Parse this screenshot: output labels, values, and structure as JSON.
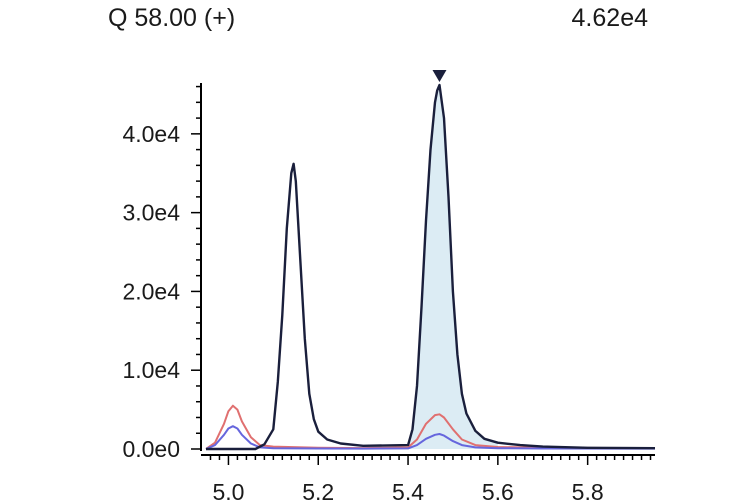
{
  "header": {
    "channel": "Q 58.00 (+)",
    "max_intensity": "4.62e4"
  },
  "chart_data": {
    "type": "line",
    "title": "Q 58.00 (+)",
    "xlabel": "",
    "ylabel": "",
    "xlim": [
      4.95,
      5.95
    ],
    "ylim": [
      0,
      46200
    ],
    "x_ticks": [
      5.0,
      5.2,
      5.4,
      5.6,
      5.8
    ],
    "x_tick_labels": [
      "5.0",
      "5.2",
      "5.4",
      "5.6",
      "5.8"
    ],
    "y_ticks": [
      0,
      10000,
      20000,
      30000,
      40000
    ],
    "y_tick_labels": [
      "0.0e0",
      "1.0e4",
      "2.0e4",
      "3.0e4",
      "4.0e4"
    ],
    "grid": false,
    "annotations": [
      {
        "type": "peak-marker",
        "x": 5.47,
        "y": 46200,
        "symbol": "triangle-down"
      },
      {
        "type": "shaded-peak",
        "x_start": 5.4,
        "x_end": 5.6
      }
    ],
    "series": [
      {
        "color": "#1a1f3c",
        "x": [
          4.95,
          5.06,
          5.08,
          5.1,
          5.11,
          5.12,
          5.13,
          5.14,
          5.145,
          5.15,
          5.16,
          5.17,
          5.18,
          5.19,
          5.2,
          5.22,
          5.25,
          5.3,
          5.4,
          5.41,
          5.42,
          5.43,
          5.44,
          5.45,
          5.46,
          5.465,
          5.47,
          5.48,
          5.49,
          5.5,
          5.51,
          5.52,
          5.53,
          5.55,
          5.57,
          5.6,
          5.65,
          5.7,
          5.8,
          5.95
        ],
        "y": [
          0,
          0,
          600,
          2500,
          8500,
          17000,
          28000,
          35000,
          36200,
          34000,
          24000,
          14000,
          7000,
          3800,
          2200,
          1200,
          700,
          400,
          500,
          2500,
          8000,
          18000,
          29000,
          38000,
          44000,
          45500,
          46200,
          42000,
          32000,
          20000,
          12000,
          7000,
          4500,
          2300,
          1300,
          800,
          500,
          300,
          150,
          100
        ]
      },
      {
        "color": "#e07070",
        "x": [
          4.95,
          4.97,
          4.99,
          5.0,
          5.01,
          5.02,
          5.03,
          5.05,
          5.07,
          5.1,
          5.2,
          5.3,
          5.4,
          5.42,
          5.44,
          5.46,
          5.47,
          5.48,
          5.5,
          5.52,
          5.55,
          5.6,
          5.7,
          5.95
        ],
        "y": [
          0,
          800,
          3200,
          4800,
          5500,
          5000,
          3500,
          1500,
          500,
          300,
          150,
          120,
          200,
          1200,
          3200,
          4300,
          4400,
          4000,
          2500,
          1200,
          500,
          250,
          150,
          100
        ]
      },
      {
        "color": "#6666dd",
        "x": [
          4.95,
          4.97,
          4.99,
          5.0,
          5.01,
          5.02,
          5.03,
          5.05,
          5.07,
          5.1,
          5.2,
          5.3,
          5.4,
          5.42,
          5.44,
          5.46,
          5.47,
          5.48,
          5.5,
          5.52,
          5.55,
          5.6,
          5.7,
          5.95
        ],
        "y": [
          0,
          500,
          1800,
          2600,
          2900,
          2600,
          1800,
          700,
          200,
          100,
          60,
          50,
          80,
          500,
          1300,
          1800,
          1900,
          1700,
          1000,
          500,
          200,
          100,
          60,
          50
        ]
      }
    ]
  }
}
